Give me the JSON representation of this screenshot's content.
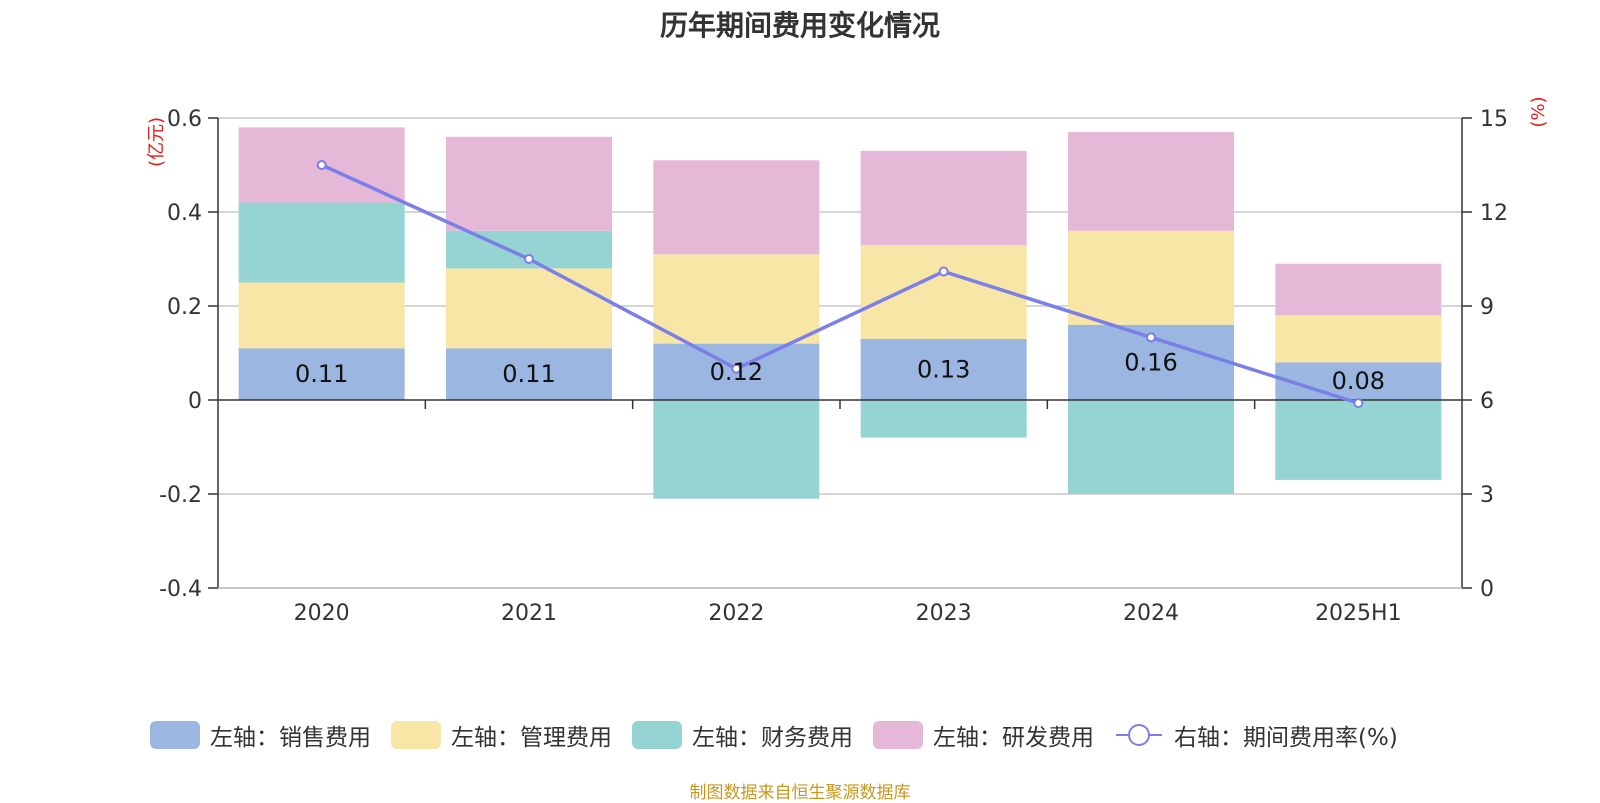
{
  "chart_data": {
    "type": "bar",
    "title": "历年期间费用变化情况",
    "categories": [
      "2020",
      "2021",
      "2022",
      "2023",
      "2024",
      "2025H1"
    ],
    "left_axis": {
      "unit": "(亿元)",
      "ylim": [
        -0.4,
        0.6
      ],
      "ticks": [
        "0.6",
        "0.4",
        "0.2",
        "0",
        "-0.2",
        "-0.4"
      ]
    },
    "right_axis": {
      "unit": "(%)",
      "ylim": [
        0,
        15
      ],
      "ticks": [
        "15",
        "12",
        "9",
        "6",
        "3",
        "0"
      ]
    },
    "stacked": true,
    "grid": true,
    "legend_position": "bottom",
    "series": [
      {
        "name": "左轴：销售费用",
        "color": "#9bb6e0",
        "axis": "left",
        "values": [
          0.11,
          0.11,
          0.12,
          0.13,
          0.16,
          0.08
        ],
        "labels": [
          "0.11",
          "0.11",
          "0.12",
          "0.13",
          "0.16",
          "0.08"
        ]
      },
      {
        "name": "左轴：管理费用",
        "color": "#f7e6a6",
        "axis": "left",
        "values": [
          0.14,
          0.17,
          0.19,
          0.2,
          0.2,
          0.1
        ]
      },
      {
        "name": "左轴：财务费用",
        "color": "#96d4d4",
        "axis": "left",
        "values": [
          0.17,
          0.08,
          -0.21,
          -0.08,
          -0.2,
          -0.17
        ]
      },
      {
        "name": "左轴：研发费用",
        "color": "#e6b8d8",
        "axis": "left",
        "values": [
          0.16,
          0.2,
          0.2,
          0.2,
          0.21,
          0.11
        ]
      }
    ],
    "line_series": {
      "name": "右轴：期间费用率(%)",
      "color": "#7b7fe8",
      "axis": "right",
      "values": [
        13.5,
        10.5,
        7.0,
        10.1,
        8.0,
        5.9
      ]
    }
  },
  "footer": "制图数据来自恒生聚源数据库"
}
